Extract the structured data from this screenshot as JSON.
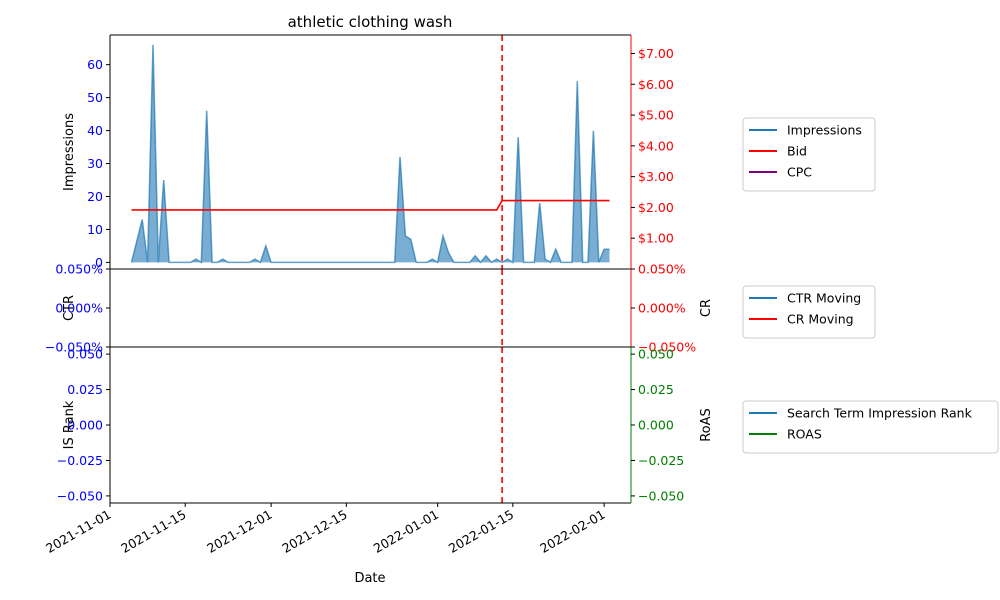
{
  "chart_data": {
    "type": "line",
    "title": "athletic clothing wash",
    "xlabel": "Date",
    "x_range": [
      "2021-11-01",
      "2022-02-06"
    ],
    "x_ticks": [
      "2021-11-01",
      "2021-11-15",
      "2021-12-01",
      "2021-12-15",
      "2022-01-01",
      "2022-01-15",
      "2022-02-01"
    ],
    "event_line": {
      "date": "2022-01-13",
      "color": "#ff0000",
      "style": "dashed"
    },
    "panels": [
      {
        "id": "top",
        "left_axis": {
          "label": "Impressions",
          "range": [
            -2,
            69
          ],
          "ticks": [
            "0",
            "10",
            "20",
            "30",
            "40",
            "50",
            "60"
          ],
          "tick_values": [
            0,
            10,
            20,
            30,
            40,
            50,
            60
          ],
          "color": "#0000ff"
        },
        "right_axis": {
          "label": "",
          "range": [
            0,
            7.6
          ],
          "ticks": [
            "$1.00",
            "$2.00",
            "$3.00",
            "$4.00",
            "$5.00",
            "$6.00",
            "$7.00"
          ],
          "tick_values": [
            1,
            2,
            3,
            4,
            5,
            6,
            7
          ],
          "color": "#ff0000"
        },
        "series": [
          {
            "name": "Impressions",
            "axis": "left",
            "style": "area",
            "color": "#1f77b4",
            "points": [
              [
                "2021-11-05",
                0
              ],
              [
                "2021-11-07",
                13
              ],
              [
                "2021-11-08",
                0
              ],
              [
                "2021-11-09",
                66
              ],
              [
                "2021-11-10",
                0
              ],
              [
                "2021-11-11",
                25
              ],
              [
                "2021-11-12",
                0
              ],
              [
                "2021-11-16",
                0
              ],
              [
                "2021-11-17",
                1
              ],
              [
                "2021-11-18",
                0
              ],
              [
                "2021-11-19",
                46
              ],
              [
                "2021-11-20",
                0
              ],
              [
                "2021-11-21",
                0
              ],
              [
                "2021-11-22",
                1
              ],
              [
                "2021-11-23",
                0
              ],
              [
                "2021-11-27",
                0
              ],
              [
                "2021-11-28",
                1
              ],
              [
                "2021-11-29",
                0
              ],
              [
                "2021-11-30",
                5
              ],
              [
                "2021-12-01",
                0
              ],
              [
                "2021-12-24",
                0
              ],
              [
                "2021-12-25",
                32
              ],
              [
                "2021-12-26",
                8
              ],
              [
                "2021-12-27",
                7
              ],
              [
                "2021-12-28",
                0
              ],
              [
                "2021-12-30",
                0
              ],
              [
                "2021-12-31",
                1
              ],
              [
                "2022-01-01",
                0
              ],
              [
                "2022-01-02",
                8
              ],
              [
                "2022-01-03",
                3
              ],
              [
                "2022-01-04",
                0
              ],
              [
                "2022-01-07",
                0
              ],
              [
                "2022-01-08",
                2
              ],
              [
                "2022-01-09",
                0
              ],
              [
                "2022-01-10",
                2
              ],
              [
                "2022-01-11",
                0
              ],
              [
                "2022-01-12",
                1
              ],
              [
                "2022-01-13",
                0
              ],
              [
                "2022-01-14",
                1
              ],
              [
                "2022-01-15",
                0
              ],
              [
                "2022-01-16",
                38
              ],
              [
                "2022-01-17",
                0
              ],
              [
                "2022-01-19",
                0
              ],
              [
                "2022-01-20",
                18
              ],
              [
                "2022-01-21",
                1
              ],
              [
                "2022-01-22",
                0
              ],
              [
                "2022-01-23",
                4
              ],
              [
                "2022-01-24",
                0
              ],
              [
                "2022-01-26",
                0
              ],
              [
                "2022-01-27",
                55
              ],
              [
                "2022-01-28",
                0
              ],
              [
                "2022-01-29",
                0
              ],
              [
                "2022-01-30",
                40
              ],
              [
                "2022-01-31",
                0
              ],
              [
                "2022-02-01",
                4
              ],
              [
                "2022-02-02",
                4
              ]
            ]
          },
          {
            "name": "Bid",
            "axis": "right",
            "style": "line",
            "color": "#ff0000",
            "points": [
              [
                "2021-11-05",
                1.92
              ],
              [
                "2022-01-12",
                1.92
              ],
              [
                "2022-01-13",
                2.22
              ],
              [
                "2022-02-02",
                2.22
              ]
            ]
          },
          {
            "name": "CPC",
            "axis": "right",
            "style": "line",
            "color": "#800080",
            "points": []
          }
        ]
      },
      {
        "id": "middle",
        "left_axis": {
          "label": "CTR",
          "range": [
            -0.05,
            0.05
          ],
          "ticks": [
            "−0.050%",
            "0.000%",
            "0.050%"
          ],
          "tick_values": [
            -0.05,
            0,
            0.05
          ],
          "color": "#0000ff"
        },
        "right_axis": {
          "label": "CR",
          "range": [
            -0.05,
            0.05
          ],
          "ticks": [
            "−0.050%",
            "0.000%",
            "0.050%"
          ],
          "tick_values": [
            -0.05,
            0,
            0.05
          ],
          "color": "#ff0000"
        },
        "series": [
          {
            "name": "CTR Moving",
            "color": "#1f77b4",
            "points": []
          },
          {
            "name": "CR Moving",
            "color": "#ff0000",
            "points": []
          }
        ]
      },
      {
        "id": "bottom",
        "left_axis": {
          "label": "IS Rank",
          "range": [
            -0.055,
            0.055
          ],
          "ticks": [
            "−0.050",
            "−0.025",
            "0.000",
            "0.025",
            "0.050"
          ],
          "tick_values": [
            -0.05,
            -0.025,
            0,
            0.025,
            0.05
          ],
          "color": "#0000ff"
        },
        "right_axis": {
          "label": "RoAS",
          "range": [
            -0.055,
            0.055
          ],
          "ticks": [
            "−0.050",
            "−0.025",
            "0.000",
            "0.025",
            "0.050"
          ],
          "tick_values": [
            -0.05,
            -0.025,
            0,
            0.025,
            0.05
          ],
          "color": "#008000"
        },
        "series": [
          {
            "name": "Search Term Impression Rank",
            "color": "#1f77b4",
            "points": []
          },
          {
            "name": "ROAS",
            "color": "#008000",
            "points": []
          }
        ]
      }
    ],
    "legends": [
      {
        "panel": "top",
        "placement": "right",
        "entries": [
          {
            "label": "Impressions",
            "color": "#1f77b4"
          },
          {
            "label": "Bid",
            "color": "#ff0000"
          },
          {
            "label": "CPC",
            "color": "#800080"
          }
        ]
      },
      {
        "panel": "middle",
        "placement": "right",
        "entries": [
          {
            "label": "CTR Moving",
            "color": "#1f77b4"
          },
          {
            "label": "CR Moving",
            "color": "#ff0000"
          }
        ]
      },
      {
        "panel": "bottom",
        "placement": "right",
        "entries": [
          {
            "label": "Search Term Impression Rank",
            "color": "#1f77b4"
          },
          {
            "label": "ROAS",
            "color": "#008000"
          }
        ]
      }
    ]
  }
}
